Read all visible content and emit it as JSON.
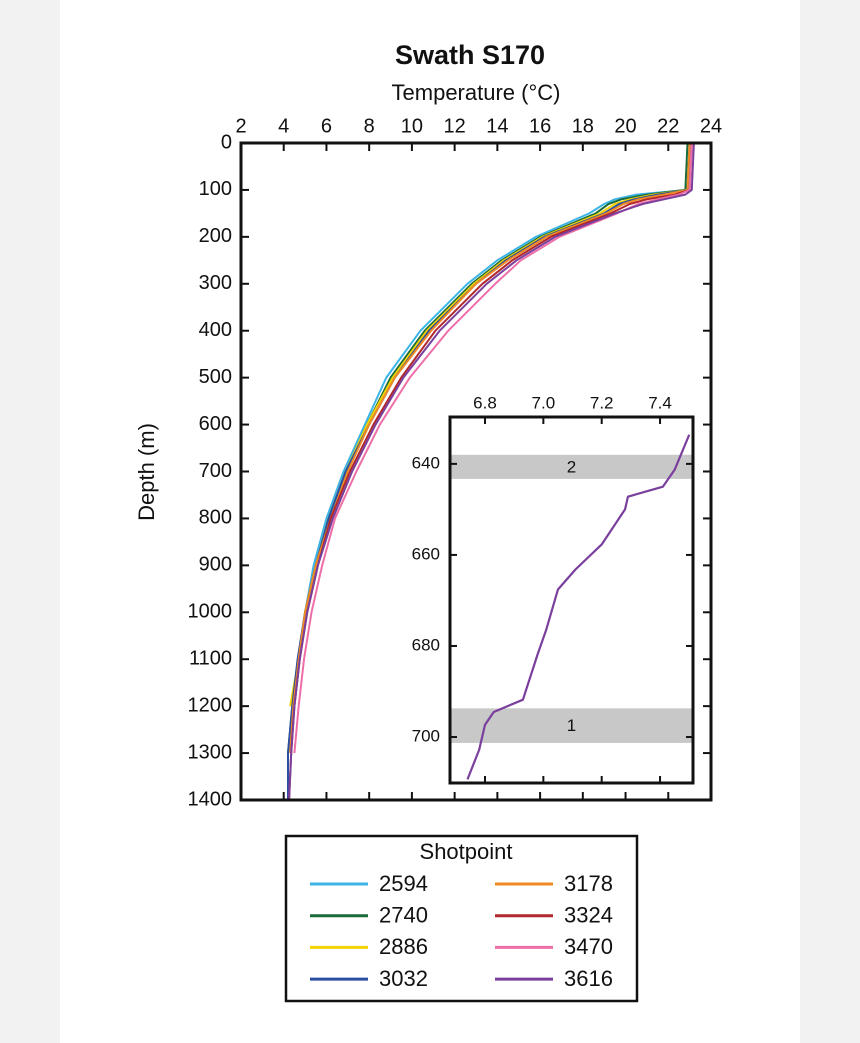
{
  "chart_data": [
    {
      "type": "line",
      "title": "Swath S170",
      "xlabel": "Temperature (°C)",
      "ylabel": "Depth (m)",
      "xlim": [
        2,
        24
      ],
      "ylim": [
        0,
        1400
      ],
      "xticks": [
        2,
        4,
        6,
        8,
        10,
        12,
        14,
        16,
        18,
        20,
        22,
        24
      ],
      "yticks": [
        0,
        100,
        200,
        300,
        400,
        500,
        600,
        700,
        800,
        900,
        1000,
        1100,
        1200,
        1300,
        1400
      ],
      "depths": [
        0,
        100,
        110,
        120,
        130,
        150,
        200,
        250,
        300,
        400,
        500,
        600,
        700,
        800,
        900,
        1000,
        1100,
        1200,
        1300,
        1400
      ],
      "legend_title": "Shotpoint",
      "series": [
        {
          "name": "2594",
          "color": "#3cb4e5",
          "values": [
            23.1,
            22.9,
            20.5,
            19.5,
            19.0,
            18.3,
            15.8,
            14.0,
            12.6,
            10.4,
            8.8,
            7.8,
            6.8,
            6.0,
            5.4,
            5.0,
            4.7,
            4.45,
            null,
            null
          ]
        },
        {
          "name": "2740",
          "color": "#1a6b3a",
          "values": [
            22.9,
            22.8,
            21.0,
            19.8,
            19.2,
            18.6,
            16.0,
            14.2,
            12.8,
            10.6,
            9.0,
            7.9,
            6.9,
            6.1,
            5.5,
            5.0,
            4.7,
            4.4,
            4.2,
            null
          ]
        },
        {
          "name": "2886",
          "color": "#f5d300",
          "values": [
            23.0,
            22.9,
            21.3,
            20.2,
            19.5,
            18.8,
            16.1,
            14.3,
            12.9,
            10.7,
            9.1,
            7.9,
            6.9,
            6.1,
            5.5,
            5.0,
            4.7,
            4.3,
            null,
            null
          ]
        },
        {
          "name": "3032",
          "color": "#2a4ea0",
          "values": [
            23.0,
            22.9,
            21.5,
            20.4,
            19.7,
            19.0,
            16.2,
            14.4,
            13.0,
            10.8,
            9.2,
            8.0,
            6.9,
            6.1,
            5.5,
            5.0,
            4.65,
            4.4,
            4.2,
            4.2
          ]
        },
        {
          "name": "3178",
          "color": "#f08a24",
          "values": [
            23.0,
            22.9,
            21.8,
            20.6,
            19.9,
            19.1,
            16.3,
            14.5,
            13.0,
            10.9,
            9.2,
            8.0,
            7.0,
            6.2,
            5.5,
            5.0,
            4.7,
            4.45,
            4.3,
            null
          ]
        },
        {
          "name": "3324",
          "color": "#b0282e",
          "values": [
            23.1,
            23.0,
            22.3,
            21.0,
            20.2,
            19.3,
            16.5,
            14.7,
            13.3,
            11.1,
            9.5,
            8.2,
            7.1,
            6.2,
            5.6,
            5.1,
            4.75,
            4.5,
            4.35,
            4.25
          ]
        },
        {
          "name": "3470",
          "color": "#ee6fa8",
          "values": [
            23.1,
            23.0,
            22.5,
            21.5,
            20.6,
            19.6,
            16.9,
            15.1,
            13.9,
            11.7,
            9.9,
            8.5,
            7.4,
            6.4,
            5.8,
            5.3,
            4.95,
            4.7,
            4.5,
            null
          ]
        },
        {
          "name": "3616",
          "color": "#7a3f9d",
          "values": [
            23.2,
            23.1,
            22.8,
            21.8,
            20.8,
            19.5,
            16.7,
            14.9,
            13.5,
            11.3,
            9.6,
            8.3,
            7.2,
            6.3,
            5.6,
            5.1,
            4.75,
            4.5,
            4.35,
            4.25
          ]
        }
      ]
    },
    {
      "type": "line",
      "xlim": [
        6.68,
        7.513
      ],
      "ylim": [
        629.7,
        710.1
      ],
      "xticks": [
        6.8,
        {
          "value": 7,
          "label": "7.0"
        },
        7.2,
        7.4
      ],
      "yticks": [
        640,
        660,
        680,
        700
      ],
      "bands": [
        {
          "label": "2",
          "range": [
            638,
            643.3
          ]
        },
        {
          "label": "1",
          "range": [
            693.7,
            701.3
          ]
        }
      ],
      "depths": [
        633.6,
        641.3,
        645,
        647.2,
        650,
        657.7,
        663.2,
        667.6,
        676.4,
        681.9,
        691.8,
        694.5,
        697.3,
        702.8,
        709.3
      ],
      "series": [
        {
          "color": "#7a3f9d",
          "values": [
            7.5,
            7.45,
            7.41,
            7.29,
            7.28,
            7.2,
            7.11,
            7.05,
            7.01,
            6.98,
            6.93,
            6.83,
            6.8,
            6.78,
            6.74
          ]
        }
      ]
    }
  ]
}
